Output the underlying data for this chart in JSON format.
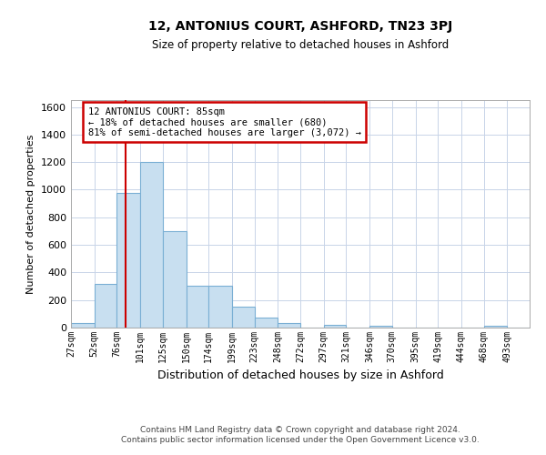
{
  "title": "12, ANTONIUS COURT, ASHFORD, TN23 3PJ",
  "subtitle": "Size of property relative to detached houses in Ashford",
  "xlabel": "Distribution of detached houses by size in Ashford",
  "ylabel": "Number of detached properties",
  "footer_line1": "Contains HM Land Registry data © Crown copyright and database right 2024.",
  "footer_line2": "Contains public sector information licensed under the Open Government Licence v3.0.",
  "annotation_line1": "12 ANTONIUS COURT: 85sqm",
  "annotation_line2": "← 18% of detached houses are smaller (680)",
  "annotation_line3": "81% of semi-detached houses are larger (3,072) →",
  "bar_color": "#c8dff0",
  "bar_edge_color": "#7aafd4",
  "vline_color": "#cc0000",
  "vline_x": 85,
  "annotation_box_color": "#cc0000",
  "ylim": [
    0,
    1650
  ],
  "yticks": [
    0,
    200,
    400,
    600,
    800,
    1000,
    1200,
    1400,
    1600
  ],
  "bin_edges": [
    27,
    52,
    76,
    101,
    125,
    150,
    174,
    199,
    223,
    248,
    272,
    297,
    321,
    346,
    370,
    395,
    419,
    444,
    468,
    493,
    517
  ],
  "bar_heights": [
    30,
    320,
    975,
    1200,
    700,
    305,
    305,
    150,
    70,
    30,
    0,
    20,
    0,
    15,
    0,
    0,
    0,
    0,
    10,
    0
  ],
  "background_color": "#ffffff",
  "grid_color": "#c8d4e8"
}
